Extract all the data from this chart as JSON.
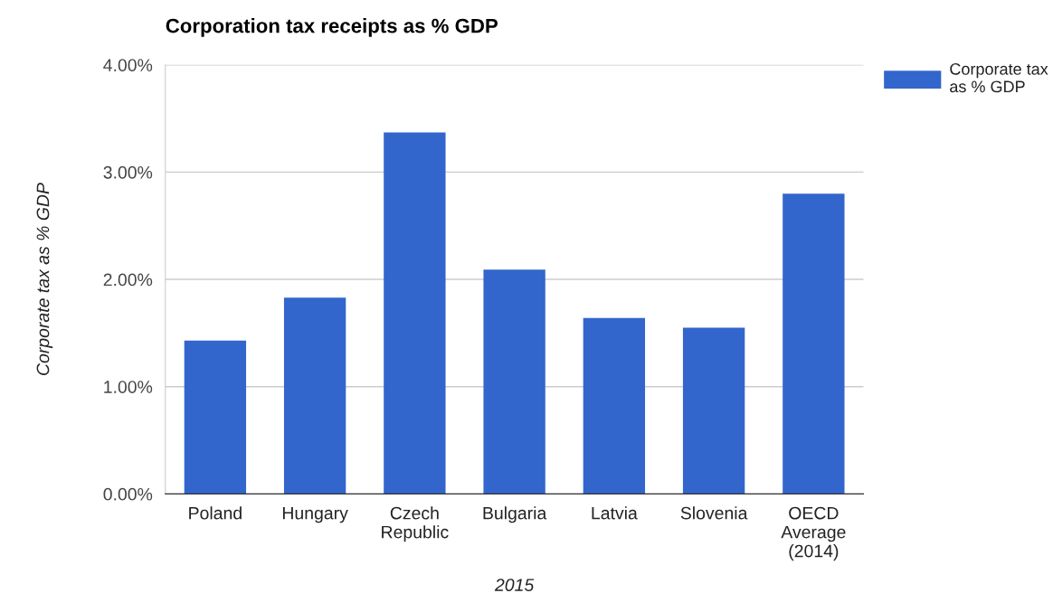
{
  "chart_data": {
    "type": "bar",
    "title": "Corporation tax receipts as % GDP",
    "xlabel": "2015",
    "ylabel": "Corporate tax as % GDP",
    "categories": [
      "Poland",
      "Hungary",
      "Czech\nRepublic",
      "Bulgaria",
      "Latvia",
      "Slovenia",
      "OECD\nAverage\n(2014)"
    ],
    "series": [
      {
        "name": "Corporate tax\nas % GDP",
        "color": "#3366cc",
        "values": [
          1.43,
          1.83,
          3.37,
          2.09,
          1.64,
          1.55,
          2.8
        ]
      }
    ],
    "ylim": [
      0,
      4
    ],
    "yticks": [
      {
        "value": 0,
        "label": "0.00%"
      },
      {
        "value": 1,
        "label": "1.00%"
      },
      {
        "value": 2,
        "label": "2.00%"
      },
      {
        "value": 3,
        "label": "3.00%"
      },
      {
        "value": 4,
        "label": "4.00%"
      }
    ],
    "grid": "y",
    "legend": "top right"
  }
}
